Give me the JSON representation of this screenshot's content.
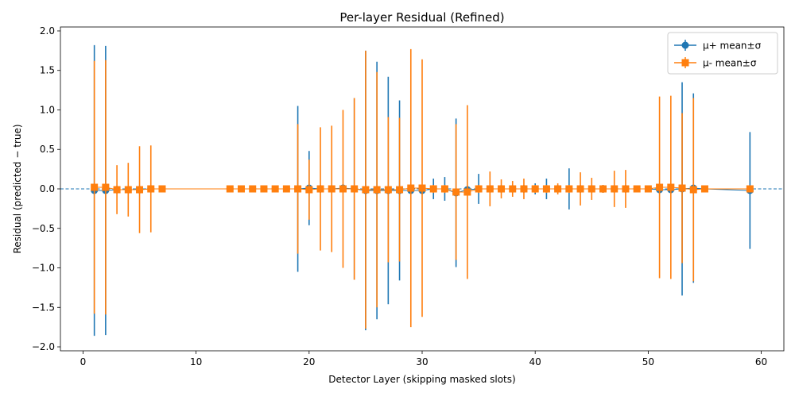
{
  "chart_data": {
    "type": "scatter",
    "title": "Per-layer Residual (Refined)",
    "xlabel": "Detector Layer (skipping masked slots)",
    "ylabel": "Residual (predicted − true)",
    "xlim": [
      -2,
      62
    ],
    "ylim": [
      -2.05,
      2.05
    ],
    "xticks": [
      0,
      10,
      20,
      30,
      40,
      50,
      60
    ],
    "yticks": [
      -2.0,
      -1.5,
      -1.0,
      -0.5,
      0.0,
      0.5,
      1.0,
      1.5,
      2.0
    ],
    "ytick_labels": [
      "−2.0",
      "−1.5",
      "−1.0",
      "−0.5",
      "0.0",
      "0.5",
      "1.0",
      "1.5",
      "2.0"
    ],
    "reference_line": {
      "y": 0,
      "style": "dashed"
    },
    "legend": {
      "placement": "top-right"
    },
    "grid": false,
    "series": [
      {
        "name": "μ+ mean±σ",
        "color": "#1f77b4",
        "marker": "circle",
        "points": [
          [
            1,
            -0.02,
            1.84
          ],
          [
            2,
            -0.02,
            1.83
          ],
          [
            3,
            -0.01,
            0.05
          ],
          [
            4,
            -0.01,
            0.05
          ],
          [
            5,
            -0.01,
            0.05
          ],
          [
            6,
            0.0,
            0.05
          ],
          [
            7,
            0.0,
            0.04
          ],
          [
            13,
            0.0,
            0.02
          ],
          [
            14,
            0.0,
            0.02
          ],
          [
            15,
            0.0,
            0.02
          ],
          [
            16,
            0.0,
            0.02
          ],
          [
            17,
            0.0,
            0.02
          ],
          [
            18,
            0.0,
            0.02
          ],
          [
            19,
            0.0,
            1.05
          ],
          [
            20,
            0.01,
            0.47
          ],
          [
            21,
            0.0,
            0.05
          ],
          [
            22,
            0.0,
            0.05
          ],
          [
            23,
            0.01,
            0.05
          ],
          [
            24,
            0.0,
            1.15
          ],
          [
            25,
            -0.02,
            1.77
          ],
          [
            26,
            -0.02,
            1.63
          ],
          [
            27,
            -0.02,
            1.44
          ],
          [
            28,
            -0.02,
            1.14
          ],
          [
            29,
            -0.02,
            0.05
          ],
          [
            30,
            -0.02,
            0.05
          ],
          [
            31,
            0.0,
            0.13
          ],
          [
            32,
            0.0,
            0.15
          ],
          [
            33,
            -0.05,
            0.94
          ],
          [
            34,
            -0.01,
            0.05
          ],
          [
            35,
            0.0,
            0.19
          ],
          [
            36,
            0.0,
            0.05
          ],
          [
            37,
            0.0,
            0.05
          ],
          [
            38,
            0.0,
            0.05
          ],
          [
            39,
            0.0,
            0.05
          ],
          [
            40,
            0.0,
            0.07
          ],
          [
            41,
            0.0,
            0.13
          ],
          [
            42,
            0.0,
            0.05
          ],
          [
            43,
            0.0,
            0.26
          ],
          [
            44,
            0.0,
            0.05
          ],
          [
            45,
            0.0,
            0.05
          ],
          [
            46,
            0.0,
            0.05
          ],
          [
            47,
            0.0,
            0.05
          ],
          [
            48,
            0.0,
            0.05
          ],
          [
            49,
            0.0,
            0.03
          ],
          [
            50,
            0.0,
            0.03
          ],
          [
            51,
            -0.01,
            0.05
          ],
          [
            52,
            -0.01,
            0.05
          ],
          [
            53,
            0.0,
            1.35
          ],
          [
            54,
            0.01,
            1.2
          ],
          [
            55,
            0.0,
            0.03
          ],
          [
            59,
            -0.02,
            0.74
          ]
        ]
      },
      {
        "name": "μ- mean±σ",
        "color": "#ff7f0e",
        "marker": "square",
        "points": [
          [
            1,
            0.02,
            1.6
          ],
          [
            2,
            0.02,
            1.61
          ],
          [
            3,
            -0.01,
            0.31
          ],
          [
            4,
            -0.01,
            0.34
          ],
          [
            5,
            -0.01,
            0.55
          ],
          [
            6,
            0.0,
            0.55
          ],
          [
            7,
            0.0,
            0.03
          ],
          [
            13,
            0.0,
            0.02
          ],
          [
            14,
            0.0,
            0.02
          ],
          [
            15,
            0.0,
            0.02
          ],
          [
            16,
            0.0,
            0.02
          ],
          [
            17,
            0.0,
            0.02
          ],
          [
            18,
            0.0,
            0.02
          ],
          [
            19,
            0.0,
            0.82
          ],
          [
            20,
            -0.01,
            0.38
          ],
          [
            21,
            0.0,
            0.78
          ],
          [
            22,
            0.0,
            0.8
          ],
          [
            23,
            0.0,
            1.0
          ],
          [
            24,
            0.0,
            1.15
          ],
          [
            25,
            -0.01,
            1.76
          ],
          [
            26,
            -0.01,
            1.49
          ],
          [
            27,
            -0.01,
            0.92
          ],
          [
            28,
            -0.01,
            0.91
          ],
          [
            29,
            0.01,
            1.76
          ],
          [
            30,
            0.01,
            1.63
          ],
          [
            31,
            0.0,
            0.05
          ],
          [
            32,
            0.0,
            0.05
          ],
          [
            33,
            -0.04,
            0.86
          ],
          [
            34,
            -0.04,
            1.1
          ],
          [
            35,
            0.0,
            0.05
          ],
          [
            36,
            0.0,
            0.22
          ],
          [
            37,
            0.0,
            0.12
          ],
          [
            38,
            0.0,
            0.1
          ],
          [
            39,
            0.0,
            0.13
          ],
          [
            40,
            0.0,
            0.05
          ],
          [
            41,
            0.0,
            0.05
          ],
          [
            42,
            0.0,
            0.07
          ],
          [
            43,
            0.0,
            0.05
          ],
          [
            44,
            0.0,
            0.21
          ],
          [
            45,
            0.0,
            0.14
          ],
          [
            46,
            0.0,
            0.05
          ],
          [
            47,
            0.0,
            0.23
          ],
          [
            48,
            0.0,
            0.24
          ],
          [
            49,
            0.0,
            0.03
          ],
          [
            50,
            0.0,
            0.03
          ],
          [
            51,
            0.02,
            1.15
          ],
          [
            52,
            0.02,
            1.16
          ],
          [
            53,
            0.01,
            0.95
          ],
          [
            54,
            -0.01,
            1.16
          ],
          [
            55,
            0.0,
            0.03
          ],
          [
            59,
            0.0,
            0.03
          ]
        ]
      }
    ]
  }
}
